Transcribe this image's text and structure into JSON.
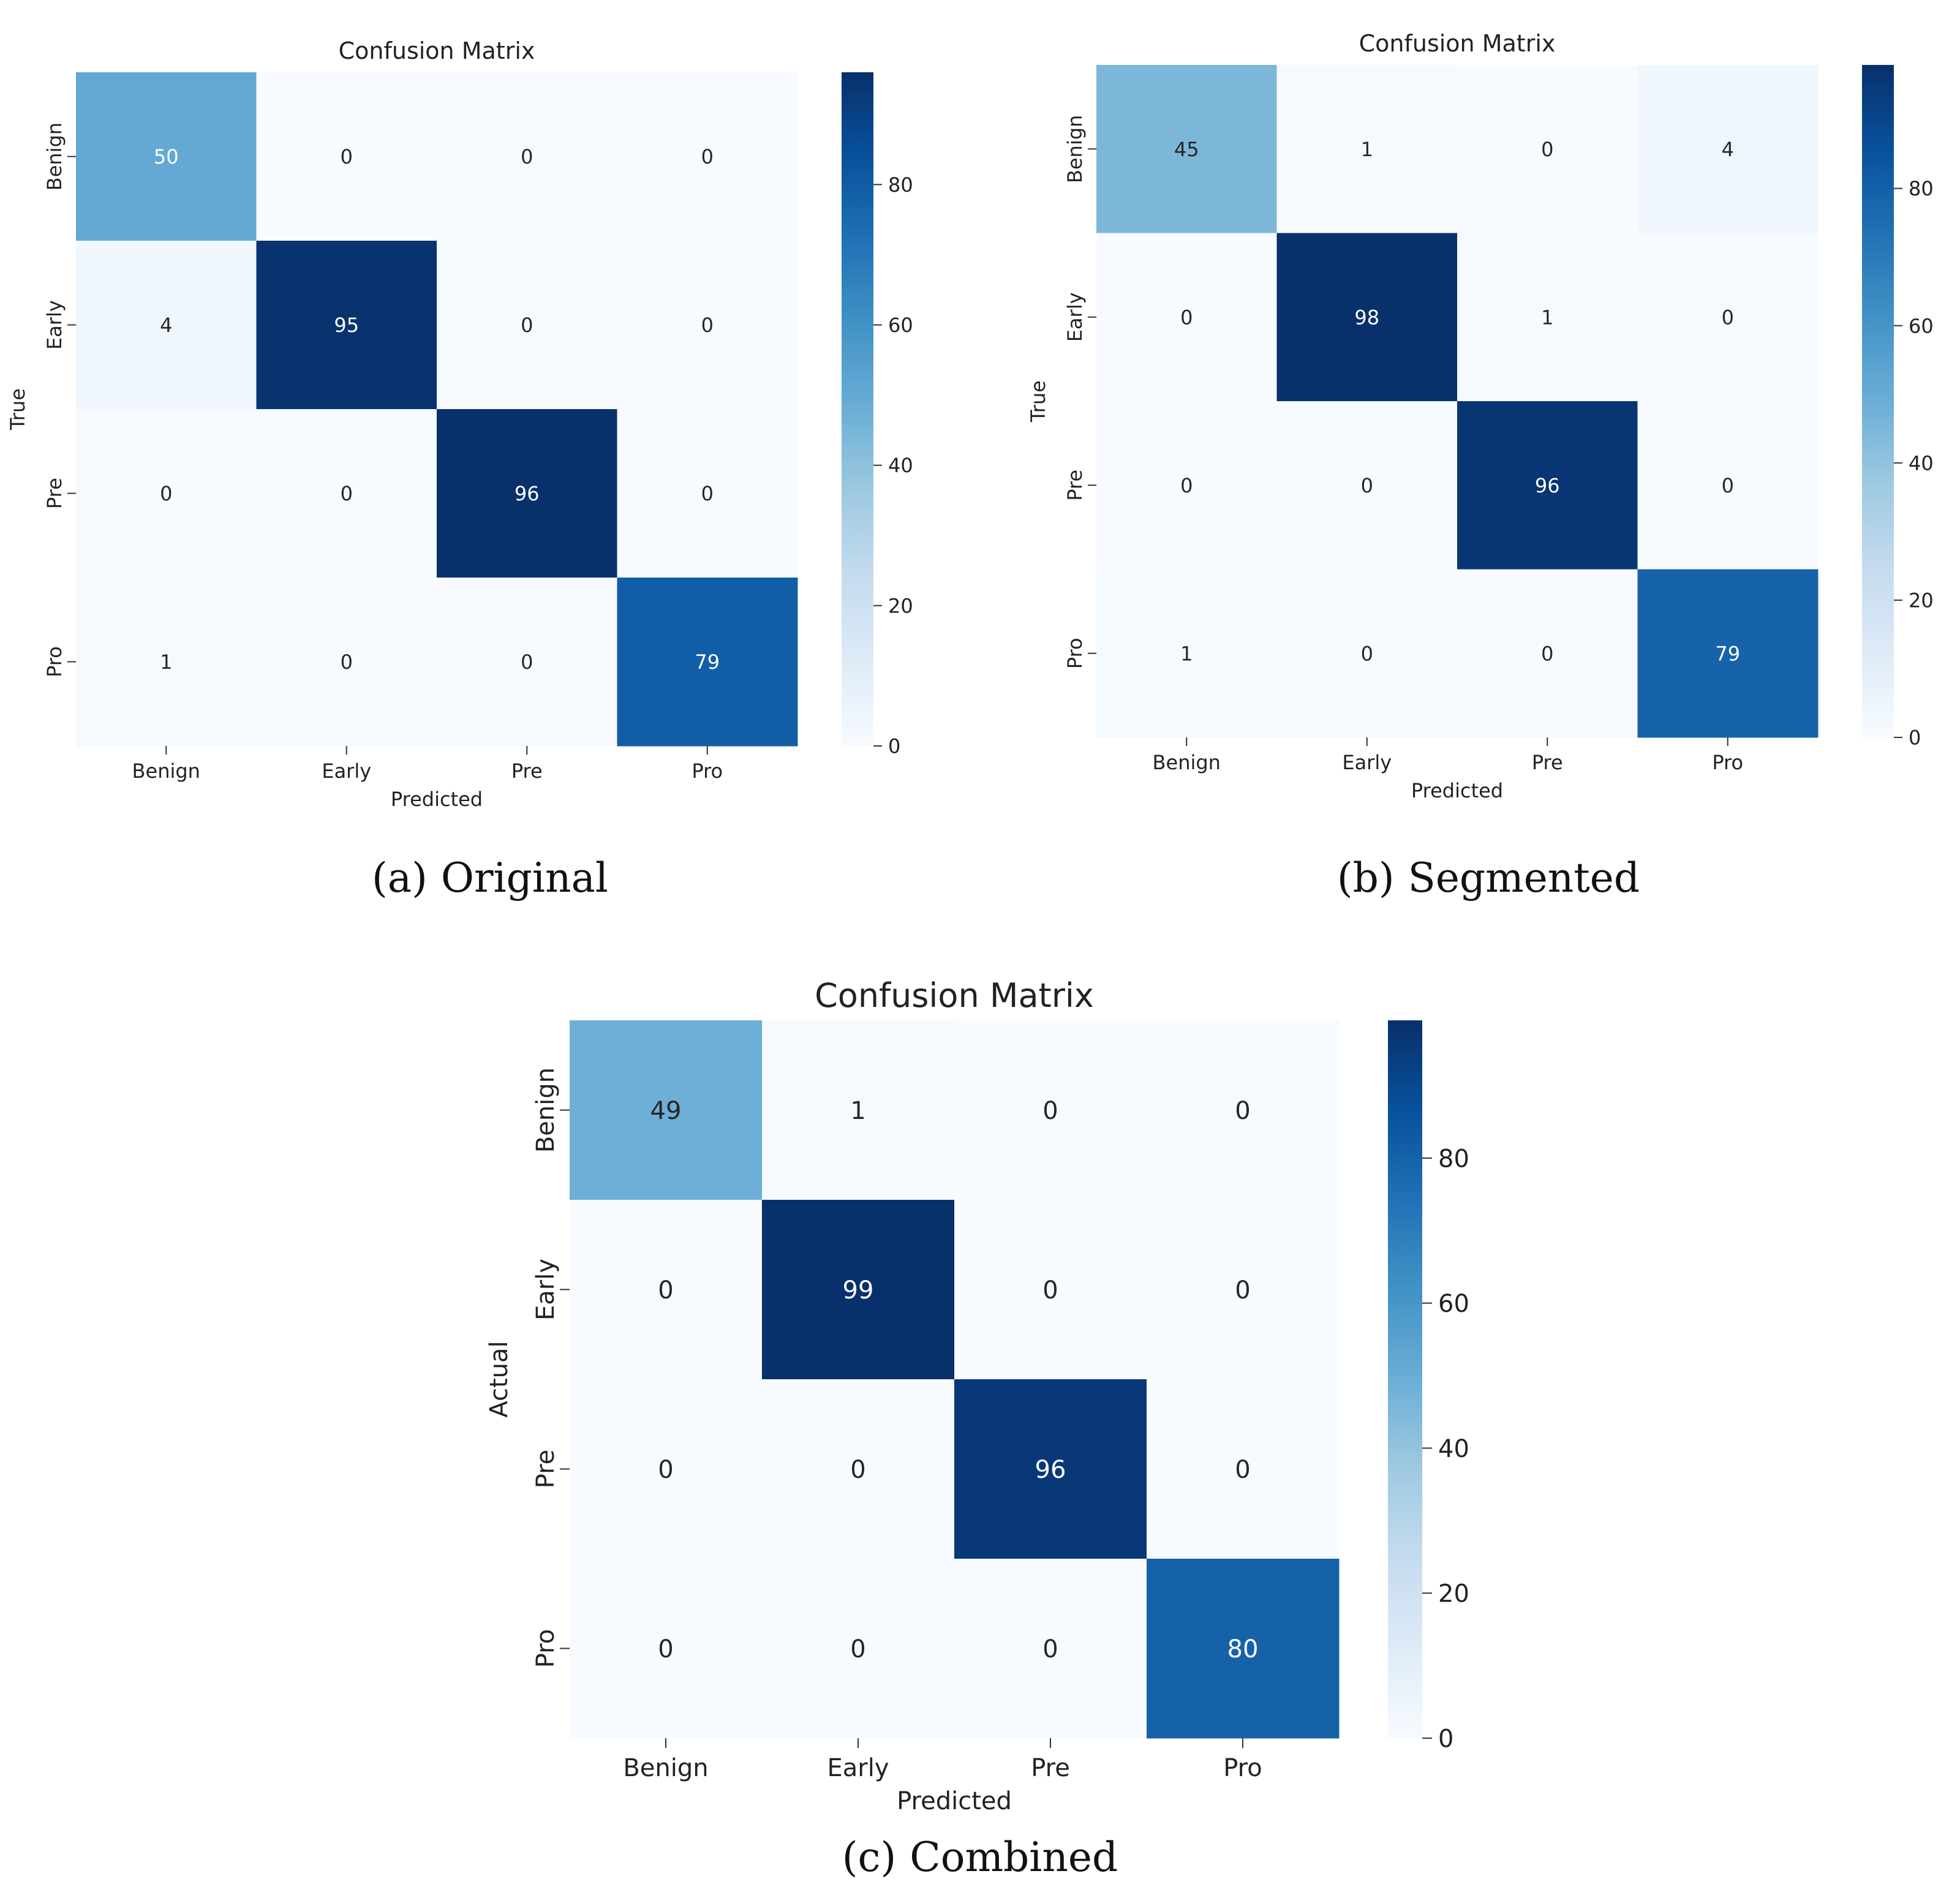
{
  "chart_data": [
    {
      "type": "heatmap",
      "title": "Confusion Matrix",
      "xlabel": "Predicted",
      "ylabel": "True",
      "x_categories": [
        "Benign",
        "Early",
        "Pre",
        "Pro"
      ],
      "y_categories": [
        "Benign",
        "Early",
        "Pre",
        "Pro"
      ],
      "matrix": [
        [
          50,
          0,
          0,
          0
        ],
        [
          4,
          95,
          0,
          0
        ],
        [
          0,
          0,
          96,
          0
        ],
        [
          1,
          0,
          0,
          79
        ]
      ],
      "colorbar": {
        "min": 0,
        "max": 96,
        "ticks": [
          0,
          20,
          40,
          60,
          80
        ]
      },
      "colormap": "Blues",
      "caption_label": "(a)",
      "caption_text": "Original"
    },
    {
      "type": "heatmap",
      "title": "Confusion Matrix",
      "xlabel": "Predicted",
      "ylabel": "True",
      "x_categories": [
        "Benign",
        "Early",
        "Pre",
        "Pro"
      ],
      "y_categories": [
        "Benign",
        "Early",
        "Pre",
        "Pro"
      ],
      "matrix": [
        [
          45,
          1,
          0,
          4
        ],
        [
          0,
          98,
          1,
          0
        ],
        [
          0,
          0,
          96,
          0
        ],
        [
          1,
          0,
          0,
          79
        ]
      ],
      "colorbar": {
        "min": 0,
        "max": 98,
        "ticks": [
          0,
          20,
          40,
          60,
          80
        ]
      },
      "colormap": "Blues",
      "caption_label": "(b)",
      "caption_text": "Segmented"
    },
    {
      "type": "heatmap",
      "title": "Confusion Matrix",
      "xlabel": "Predicted",
      "ylabel": "Actual",
      "x_categories": [
        "Benign",
        "Early",
        "Pre",
        "Pro"
      ],
      "y_categories": [
        "Benign",
        "Early",
        "Pre",
        "Pro"
      ],
      "matrix": [
        [
          49,
          1,
          0,
          0
        ],
        [
          0,
          99,
          0,
          0
        ],
        [
          0,
          0,
          96,
          0
        ],
        [
          0,
          0,
          0,
          80
        ]
      ],
      "colorbar": {
        "min": 0,
        "max": 99,
        "ticks": [
          0,
          20,
          40,
          60,
          80
        ]
      },
      "colormap": "Blues",
      "caption_label": "(c)",
      "caption_text": "Combined"
    }
  ]
}
